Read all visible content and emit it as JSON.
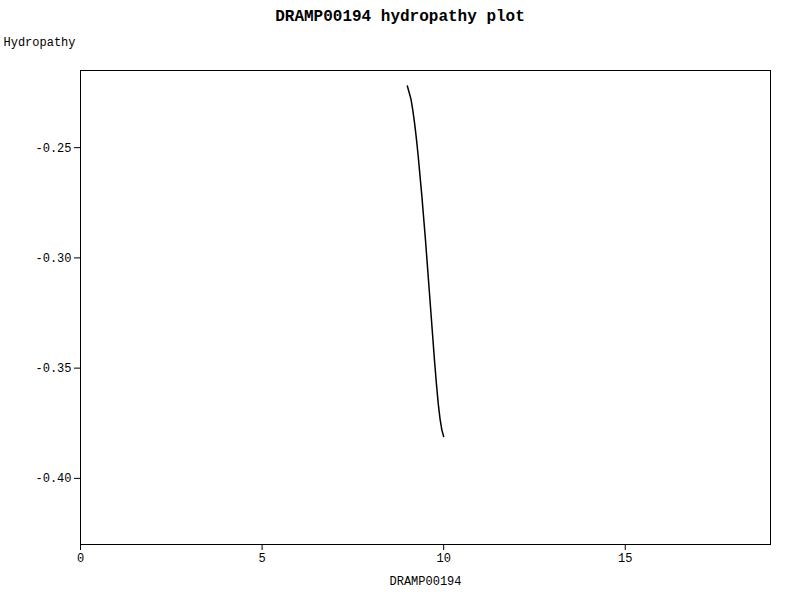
{
  "chart_data": {
    "type": "line",
    "title": "DRAMP00194 hydropathy plot",
    "xlabel": "DRAMP00194",
    "ylabel": "Hydropathy",
    "x": [
      9.0,
      9.05,
      9.1,
      9.15,
      9.2,
      9.25,
      9.3,
      9.35,
      9.4,
      9.45,
      9.5,
      9.55,
      9.6,
      9.65,
      9.7,
      9.75,
      9.8,
      9.85,
      9.9,
      9.95,
      10.0
    ],
    "values": [
      -0.222,
      -0.225,
      -0.228,
      -0.233,
      -0.239,
      -0.246,
      -0.254,
      -0.263,
      -0.272,
      -0.282,
      -0.292,
      -0.303,
      -0.314,
      -0.325,
      -0.336,
      -0.347,
      -0.357,
      -0.366,
      -0.373,
      -0.378,
      -0.381
    ],
    "color": "#000000",
    "xlim": [
      0,
      19
    ],
    "ylim": [
      -0.43,
      -0.215
    ],
    "xticks": [
      0,
      5,
      10,
      15
    ],
    "yticks": [
      {
        "value": -0.4,
        "label": "-0.40"
      },
      -0.35,
      {
        "value": -0.3,
        "label": "-0.30"
      },
      -0.25
    ],
    "grid": false
  }
}
